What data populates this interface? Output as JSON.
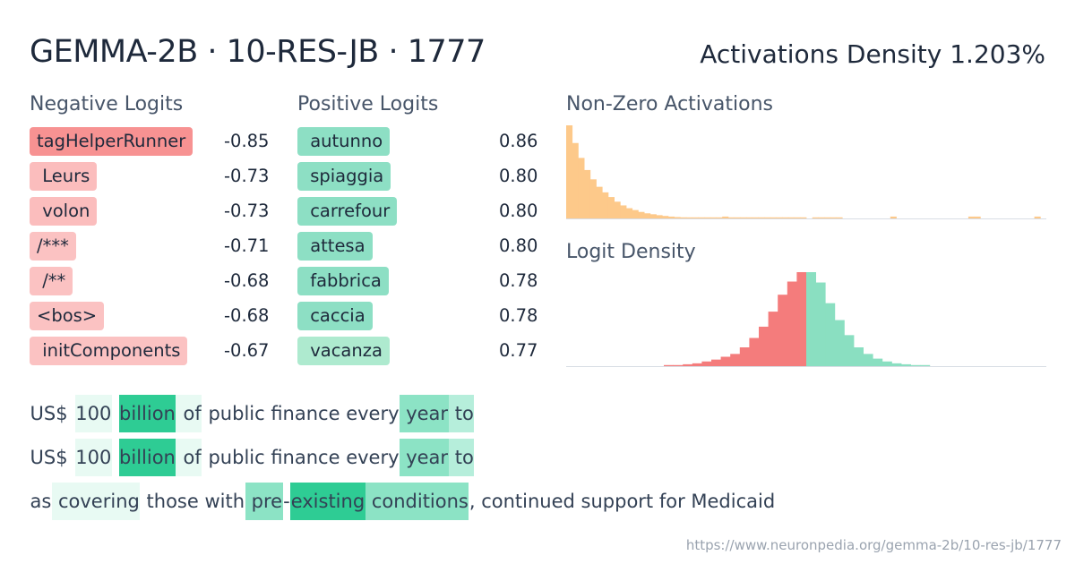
{
  "header": {
    "title": "GEMMA-2B · 10-RES-JB · 1777",
    "density_label": "Activations Density 1.203%"
  },
  "negative_logits": {
    "heading": "Negative Logits",
    "items": [
      {
        "token": "tagHelperRunner",
        "value": "-0.85"
      },
      {
        "token": " Leurs",
        "value": "-0.73"
      },
      {
        "token": " volon",
        "value": "-0.73"
      },
      {
        "token": "/***",
        "value": "-0.71"
      },
      {
        "token": " /**",
        "value": "-0.68"
      },
      {
        "token": "<bos>",
        "value": "-0.68"
      },
      {
        "token": " initComponents",
        "value": "-0.67"
      }
    ]
  },
  "positive_logits": {
    "heading": "Positive Logits",
    "items": [
      {
        "token": " autunno",
        "value": "0.86"
      },
      {
        "token": " spiaggia",
        "value": "0.80"
      },
      {
        "token": " carrefour",
        "value": "0.80"
      },
      {
        "token": " attesa",
        "value": "0.80"
      },
      {
        "token": " fabbrica",
        "value": "0.78"
      },
      {
        "token": " caccia",
        "value": "0.78"
      },
      {
        "token": " vacanza",
        "value": "0.77"
      }
    ]
  },
  "charts": {
    "nonzero": {
      "heading": "Non-Zero Activations",
      "color": "#fdc98a",
      "bin_heights": [
        1.0,
        0.81,
        0.65,
        0.52,
        0.42,
        0.34,
        0.28,
        0.23,
        0.18,
        0.14,
        0.11,
        0.09,
        0.07,
        0.055,
        0.045,
        0.035,
        0.027,
        0.02,
        0.015,
        0.012,
        0.01,
        0.008,
        0.006,
        0.006,
        0.005,
        0.004,
        0.02,
        0.004,
        0.003,
        0.003,
        0.003,
        0.002,
        0.002,
        0.002,
        0.002,
        0.002,
        0.002,
        0.002,
        0.002,
        0.002,
        0.0,
        0.002,
        0.002,
        0.002,
        0.002,
        0.002,
        0.0,
        0.0,
        0.0,
        0.0,
        0.0,
        0.0,
        0.0,
        0.0,
        0.02,
        0.0,
        0.0,
        0.0,
        0.0,
        0.0,
        0.0,
        0.0,
        0.0,
        0.0,
        0.0,
        0.0,
        0.0,
        0.02,
        0.02,
        0.0,
        0.0,
        0.0,
        0.0,
        0.0,
        0.0,
        0.0,
        0.0,
        0.0,
        0.02,
        0.0
      ]
    },
    "logit": {
      "heading": "Logit Density",
      "negative_color": "#f47c7c",
      "positive_color": "#8adfc1",
      "negative_bins": [
        0.01,
        0.01,
        0.02,
        0.03,
        0.05,
        0.07,
        0.1,
        0.13,
        0.2,
        0.3,
        0.42,
        0.58,
        0.76,
        0.9,
        1.0
      ],
      "positive_bins": [
        1.0,
        0.89,
        0.67,
        0.49,
        0.33,
        0.2,
        0.13,
        0.08,
        0.05,
        0.03,
        0.02,
        0.01,
        0.01
      ]
    }
  },
  "activation_palette": [
    "#ffffff",
    "#e8faf3",
    "#b6eedb",
    "#8ce3c5",
    "#2ecc94"
  ],
  "snippets": [
    [
      {
        "text": "US$",
        "level": 0
      },
      {
        "text": " ",
        "level": 0
      },
      {
        "text": "100",
        "level": 1
      },
      {
        "text": " ",
        "level": 0
      },
      {
        "text": "billion",
        "level": 4
      },
      {
        "text": " ",
        "level": 1
      },
      {
        "text": "of",
        "level": 1
      },
      {
        "text": " public finance every",
        "level": 0
      },
      {
        "text": " year",
        "level": 3
      },
      {
        "text": " to",
        "level": 2
      }
    ],
    [
      {
        "text": "US$",
        "level": 0
      },
      {
        "text": " ",
        "level": 0
      },
      {
        "text": "100",
        "level": 1
      },
      {
        "text": " ",
        "level": 0
      },
      {
        "text": "billion",
        "level": 4
      },
      {
        "text": " ",
        "level": 1
      },
      {
        "text": "of",
        "level": 1
      },
      {
        "text": " public finance every",
        "level": 0
      },
      {
        "text": " year",
        "level": 3
      },
      {
        "text": " to",
        "level": 2
      }
    ],
    [
      {
        "text": "as",
        "level": 0
      },
      {
        "text": " covering",
        "level": 1
      },
      {
        "text": " those with",
        "level": 0
      },
      {
        "text": " pre",
        "level": 3
      },
      {
        "text": "-",
        "level": 0
      },
      {
        "text": "existing",
        "level": 4
      },
      {
        "text": " conditions",
        "level": 3
      },
      {
        "text": ", continued support for Medicaid",
        "level": 0
      }
    ]
  ],
  "footer_url": "https://www.neuronpedia.org/gemma-2b/10-res-jb/1777"
}
